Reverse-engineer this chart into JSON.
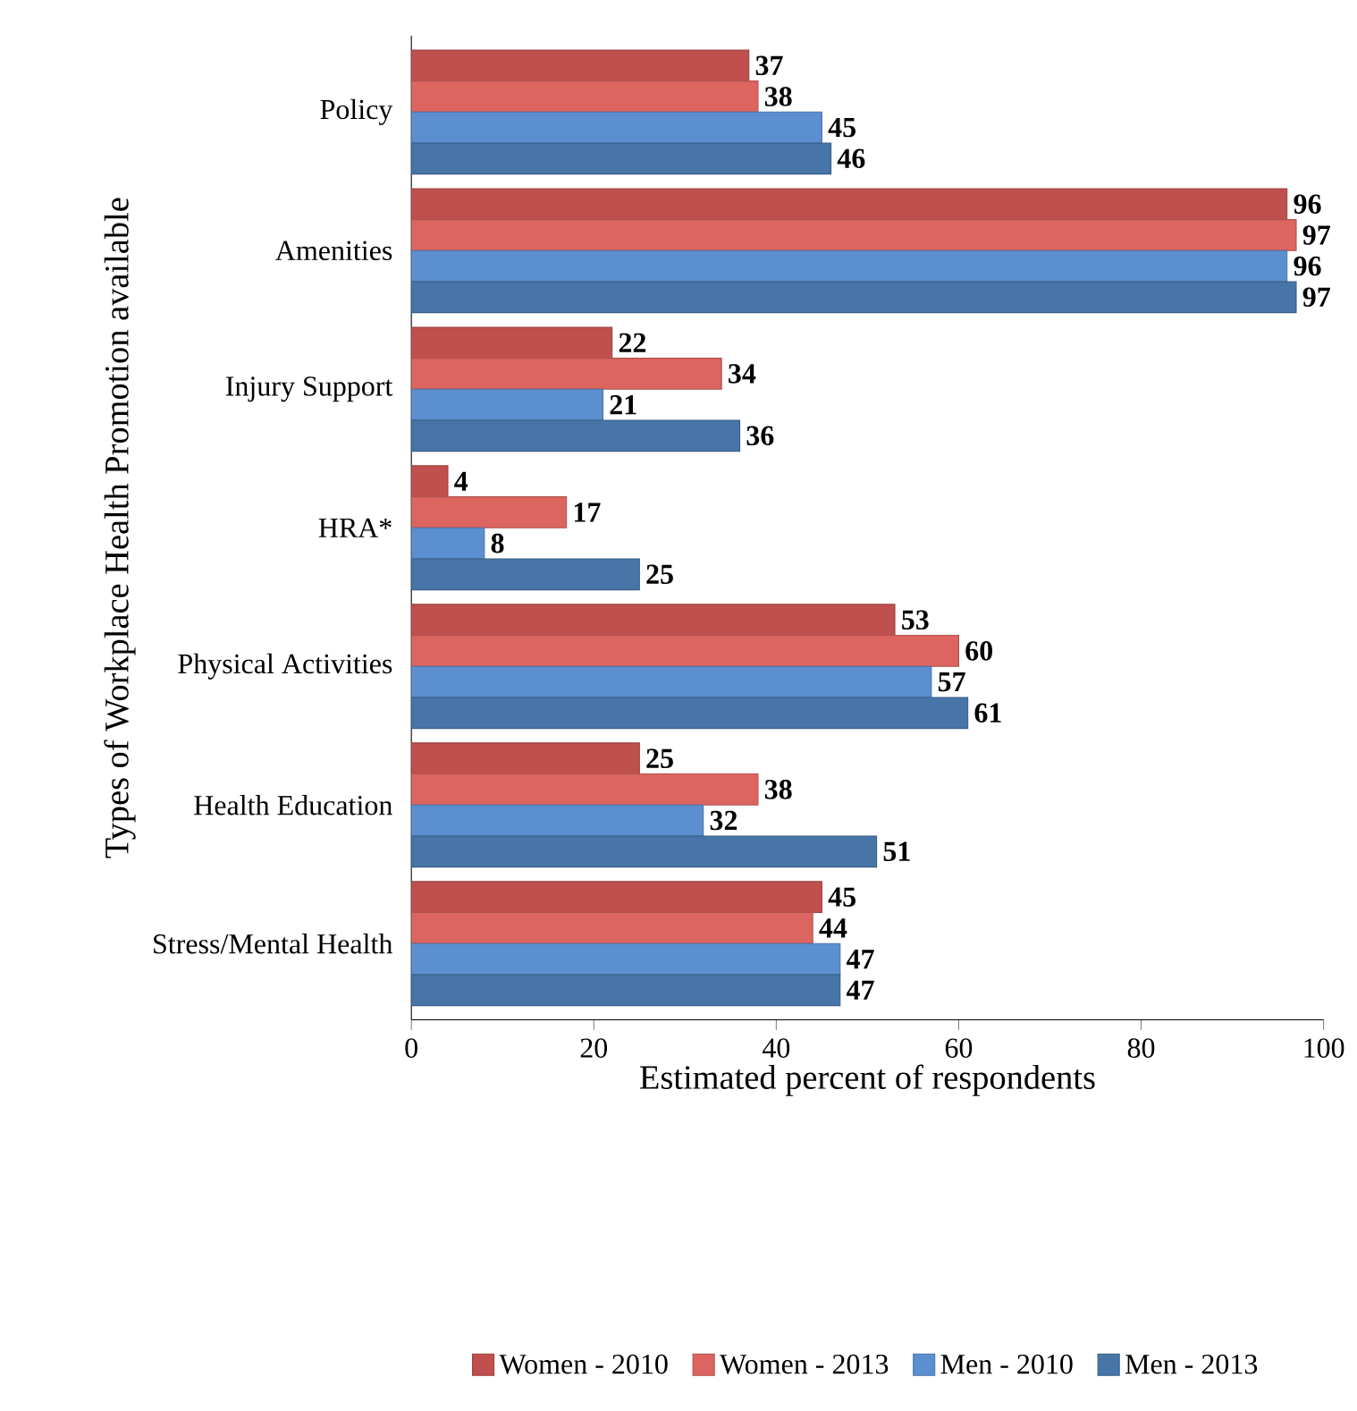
{
  "chart_data": {
    "type": "bar",
    "orientation": "horizontal",
    "xlabel": "Estimated percent of respondents",
    "ylabel": "Types of Workplace Health Promotion available",
    "categories": [
      "Policy",
      "Amenities",
      "Injury Support",
      "HRA*",
      "Physical Activities",
      "Health Education",
      "Stress/Mental Health"
    ],
    "series": [
      {
        "name": "Women - 2010",
        "color": "#c0504d",
        "values": [
          37,
          96,
          22,
          4,
          53,
          25,
          45
        ]
      },
      {
        "name": "Women - 2013",
        "color": "#dc6560",
        "values": [
          38,
          97,
          34,
          17,
          60,
          38,
          44
        ]
      },
      {
        "name": "Men - 2010",
        "color": "#5b8fd0",
        "values": [
          45,
          96,
          21,
          8,
          57,
          32,
          47
        ]
      },
      {
        "name": "Men - 2013",
        "color": "#4775a8",
        "values": [
          46,
          97,
          36,
          25,
          61,
          51,
          47
        ]
      }
    ],
    "xlim": [
      0,
      100
    ],
    "xticks": [
      0,
      20,
      40,
      60,
      80,
      100
    ],
    "data_labels": true,
    "legend": "bottom",
    "grid": false
  }
}
